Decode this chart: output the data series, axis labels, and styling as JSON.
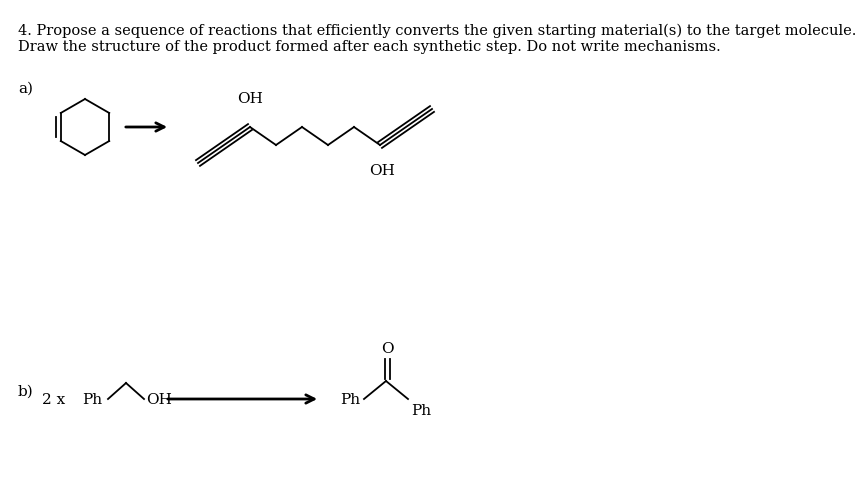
{
  "title_line1": "4. Propose a sequence of reactions that efficiently converts the given starting material(s) to the target molecule.",
  "title_line2": "Draw the structure of the product formed after each synthetic step. Do not write mechanisms.",
  "label_a": "a)",
  "label_b": "b)",
  "text_2x": "2 x",
  "text_Ph_reactant": "Ph",
  "text_OH_upper": "OH",
  "text_OH_lower": "OH",
  "text_Ph_prod_left": "Ph",
  "text_Ph_prod_right": "Ph",
  "text_O": "O",
  "bg_color": "#ffffff",
  "line_color": "#000000",
  "title_fontsize": 10.5,
  "label_fontsize": 11,
  "mol_fontsize": 11
}
